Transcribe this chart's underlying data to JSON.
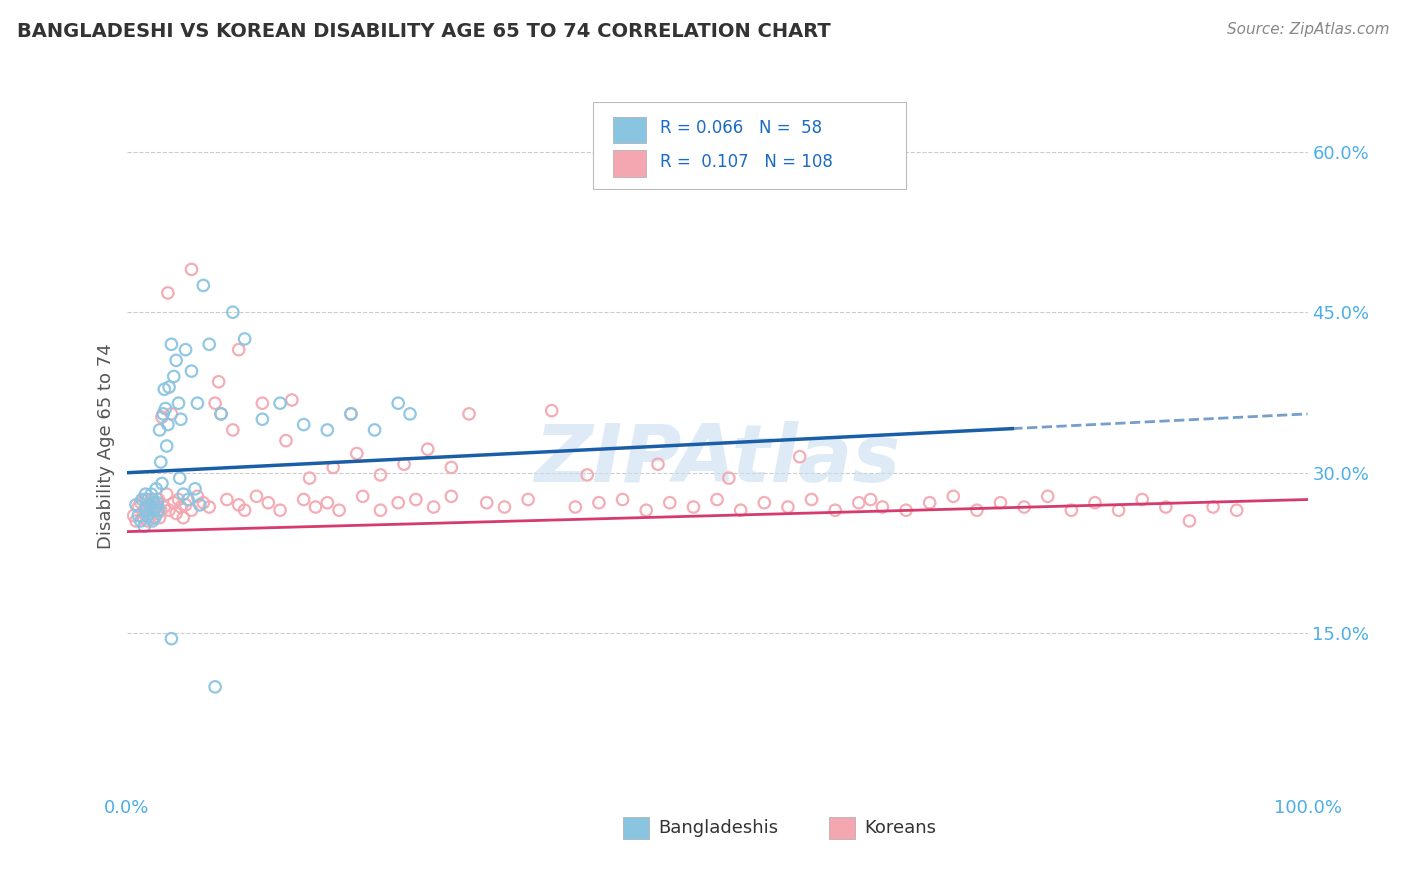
{
  "title": "BANGLADESHI VS KOREAN DISABILITY AGE 65 TO 74 CORRELATION CHART",
  "source_text": "Source: ZipAtlas.com",
  "ylabel": "Disability Age 65 to 74",
  "xlim": [
    0.0,
    1.0
  ],
  "ylim": [
    0.0,
    0.65
  ],
  "ytick_vals": [
    0.15,
    0.3,
    0.45,
    0.6
  ],
  "ytick_labels": [
    "15.0%",
    "30.0%",
    "45.0%",
    "60.0%"
  ],
  "xtick_vals": [
    0.0,
    1.0
  ],
  "xtick_labels": [
    "0.0%",
    "100.0%"
  ],
  "legend_labels": [
    "Bangladeshis",
    "Koreans"
  ],
  "r_bangladeshi": 0.066,
  "n_bangladeshi": 58,
  "r_korean": 0.107,
  "n_korean": 108,
  "blue_scatter_color": "#89c4e1",
  "pink_scatter_color": "#f4a7b0",
  "blue_line_color": "#1a5ea8",
  "pink_line_color": "#d63b6e",
  "blue_legend_color": "#89c4e1",
  "pink_legend_color": "#f4a7b0",
  "legend_text_color": "#1a6bc4",
  "watermark_color": "#c8dff0",
  "title_color": "#333333",
  "axis_tick_color": "#4daee8",
  "grid_color": "#cccccc",
  "bd_x": [
    0.008,
    0.01,
    0.012,
    0.013,
    0.015,
    0.016,
    0.016,
    0.017,
    0.018,
    0.018,
    0.019,
    0.02,
    0.021,
    0.022,
    0.022,
    0.023,
    0.024,
    0.025,
    0.025,
    0.026,
    0.027,
    0.028,
    0.029,
    0.03,
    0.031,
    0.032,
    0.033,
    0.034,
    0.035,
    0.036,
    0.038,
    0.04,
    0.042,
    0.044,
    0.046,
    0.05,
    0.055,
    0.06,
    0.065,
    0.07,
    0.08,
    0.09,
    0.1,
    0.115,
    0.13,
    0.15,
    0.17,
    0.19,
    0.21,
    0.23,
    0.045,
    0.048,
    0.052,
    0.058,
    0.062,
    0.24,
    0.038,
    0.075
  ],
  "bd_y": [
    0.27,
    0.26,
    0.255,
    0.275,
    0.25,
    0.265,
    0.28,
    0.268,
    0.26,
    0.275,
    0.262,
    0.27,
    0.28,
    0.265,
    0.255,
    0.272,
    0.258,
    0.268,
    0.285,
    0.272,
    0.265,
    0.34,
    0.31,
    0.29,
    0.355,
    0.378,
    0.36,
    0.325,
    0.345,
    0.38,
    0.42,
    0.39,
    0.405,
    0.365,
    0.35,
    0.415,
    0.395,
    0.365,
    0.475,
    0.42,
    0.355,
    0.45,
    0.425,
    0.35,
    0.365,
    0.345,
    0.34,
    0.355,
    0.34,
    0.365,
    0.295,
    0.28,
    0.275,
    0.285,
    0.27,
    0.355,
    0.145,
    0.1
  ],
  "ko_x": [
    0.006,
    0.008,
    0.01,
    0.012,
    0.014,
    0.015,
    0.016,
    0.017,
    0.018,
    0.019,
    0.02,
    0.021,
    0.022,
    0.023,
    0.024,
    0.025,
    0.026,
    0.027,
    0.028,
    0.029,
    0.03,
    0.032,
    0.034,
    0.036,
    0.038,
    0.04,
    0.042,
    0.044,
    0.046,
    0.048,
    0.05,
    0.055,
    0.06,
    0.065,
    0.07,
    0.075,
    0.08,
    0.085,
    0.09,
    0.095,
    0.1,
    0.11,
    0.12,
    0.13,
    0.14,
    0.15,
    0.16,
    0.17,
    0.18,
    0.19,
    0.2,
    0.215,
    0.23,
    0.245,
    0.26,
    0.275,
    0.29,
    0.305,
    0.32,
    0.34,
    0.36,
    0.38,
    0.4,
    0.42,
    0.44,
    0.46,
    0.48,
    0.5,
    0.52,
    0.54,
    0.56,
    0.58,
    0.6,
    0.62,
    0.64,
    0.66,
    0.68,
    0.7,
    0.72,
    0.74,
    0.76,
    0.78,
    0.8,
    0.82,
    0.84,
    0.86,
    0.88,
    0.9,
    0.92,
    0.94,
    0.035,
    0.055,
    0.078,
    0.095,
    0.115,
    0.135,
    0.155,
    0.175,
    0.195,
    0.215,
    0.235,
    0.255,
    0.275,
    0.39,
    0.45,
    0.51,
    0.57,
    0.63
  ],
  "ko_y": [
    0.26,
    0.255,
    0.268,
    0.272,
    0.258,
    0.265,
    0.275,
    0.26,
    0.255,
    0.27,
    0.265,
    0.262,
    0.275,
    0.258,
    0.268,
    0.27,
    0.262,
    0.275,
    0.258,
    0.265,
    0.352,
    0.268,
    0.28,
    0.265,
    0.355,
    0.272,
    0.262,
    0.275,
    0.268,
    0.258,
    0.27,
    0.265,
    0.278,
    0.272,
    0.268,
    0.365,
    0.355,
    0.275,
    0.34,
    0.27,
    0.265,
    0.278,
    0.272,
    0.265,
    0.368,
    0.275,
    0.268,
    0.272,
    0.265,
    0.355,
    0.278,
    0.265,
    0.272,
    0.275,
    0.268,
    0.278,
    0.355,
    0.272,
    0.268,
    0.275,
    0.358,
    0.268,
    0.272,
    0.275,
    0.265,
    0.272,
    0.268,
    0.275,
    0.265,
    0.272,
    0.268,
    0.275,
    0.265,
    0.272,
    0.268,
    0.265,
    0.272,
    0.278,
    0.265,
    0.272,
    0.268,
    0.278,
    0.265,
    0.272,
    0.265,
    0.275,
    0.268,
    0.255,
    0.268,
    0.265,
    0.468,
    0.49,
    0.385,
    0.415,
    0.365,
    0.33,
    0.295,
    0.305,
    0.318,
    0.298,
    0.308,
    0.322,
    0.305,
    0.298,
    0.308,
    0.295,
    0.315,
    0.275
  ]
}
